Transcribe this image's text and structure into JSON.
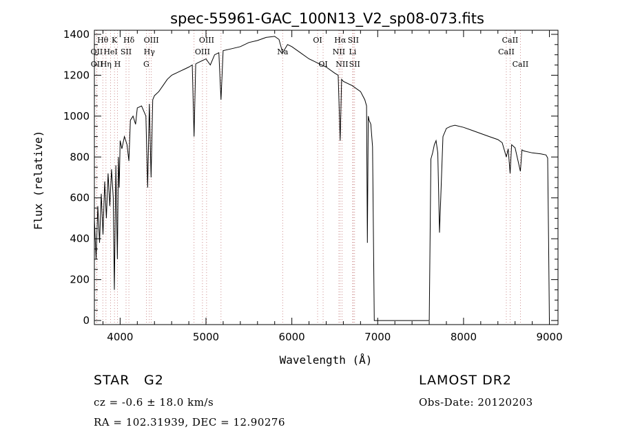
{
  "chart_data": {
    "type": "line",
    "title": "spec-55961-GAC_100N13_V2_sp08-073.fits",
    "xlabel": "Wavelength (Å)",
    "ylabel": "Flux (relative)",
    "xlim": [
      3700,
      9100
    ],
    "ylim": [
      -20,
      1420
    ],
    "xticks": [
      4000,
      5000,
      6000,
      7000,
      8000,
      9000
    ],
    "yticks": [
      0,
      200,
      400,
      600,
      800,
      1000,
      1200,
      1400
    ],
    "grid": false,
    "series": [
      {
        "x": [
          3700,
          3720,
          3740,
          3760,
          3780,
          3800,
          3820,
          3840,
          3860,
          3880,
          3900,
          3920,
          3933,
          3950,
          3968,
          3980,
          3990,
          4000,
          4020,
          4050,
          4080,
          4102,
          4120,
          4150,
          4180,
          4200,
          4250,
          4300,
          4320,
          4340,
          4360,
          4380,
          4400,
          4450,
          4500,
          4550,
          4600,
          4650,
          4700,
          4750,
          4800,
          4840,
          4861,
          4880,
          4900,
          4950,
          5000,
          5050,
          5100,
          5150,
          5175,
          5200,
          5300,
          5400,
          5500,
          5600,
          5700,
          5800,
          5850,
          5893,
          5950,
          6000,
          6100,
          6200,
          6300,
          6400,
          6500,
          6540,
          6563,
          6580,
          6600,
          6700,
          6800,
          6850,
          6870,
          6880,
          6890,
          6900,
          6920,
          6940,
          6960,
          7000,
          7200,
          7400,
          7550,
          7580,
          7600,
          7620,
          7640,
          7660,
          7680,
          7700,
          7720,
          7760,
          7800,
          7850,
          7900,
          8000,
          8100,
          8200,
          8300,
          8400,
          8450,
          8498,
          8520,
          8542,
          8560,
          8600,
          8662,
          8680,
          8700,
          8800,
          8900,
          8960,
          8980,
          8990,
          9000
        ],
        "y": [
          500,
          300,
          560,
          380,
          620,
          420,
          680,
          500,
          720,
          560,
          740,
          600,
          150,
          760,
          300,
          800,
          650,
          880,
          840,
          900,
          860,
          780,
          980,
          1000,
          960,
          1040,
          1050,
          1000,
          650,
          1060,
          700,
          1080,
          1100,
          1120,
          1150,
          1180,
          1200,
          1210,
          1220,
          1230,
          1240,
          1250,
          900,
          1255,
          1260,
          1270,
          1280,
          1250,
          1300,
          1310,
          1080,
          1320,
          1330,
          1340,
          1360,
          1370,
          1385,
          1390,
          1375,
          1310,
          1350,
          1340,
          1310,
          1280,
          1260,
          1240,
          1210,
          1200,
          880,
          1180,
          1170,
          1150,
          1120,
          1080,
          1050,
          380,
          1000,
          980,
          960,
          850,
          0,
          0,
          0,
          0,
          0,
          0,
          0,
          790,
          820,
          860,
          880,
          820,
          430,
          900,
          940,
          950,
          955,
          945,
          930,
          915,
          900,
          885,
          870,
          800,
          840,
          720,
          860,
          845,
          730,
          835,
          830,
          820,
          815,
          810,
          795,
          400,
          0
        ]
      }
    ],
    "annotations": [
      {
        "label": "Hθ",
        "x": 3798,
        "row": 1
      },
      {
        "label": "K",
        "x": 3934,
        "row": 1
      },
      {
        "label": "Hδ",
        "x": 4102,
        "row": 1
      },
      {
        "label": "OIII",
        "x": 4363,
        "row": 1
      },
      {
        "label": "OIII",
        "x": 5007,
        "row": 1
      },
      {
        "label": "OI",
        "x": 6300,
        "row": 1
      },
      {
        "label": "Hα",
        "x": 6563,
        "row": 1
      },
      {
        "label": "SII",
        "x": 6716,
        "row": 1
      },
      {
        "label": "CaII",
        "x": 8542,
        "row": 1
      },
      {
        "label": "OII",
        "x": 3727,
        "row": 2
      },
      {
        "label": "HeI",
        "x": 3889,
        "row": 2
      },
      {
        "label": "SII",
        "x": 4069,
        "row": 2
      },
      {
        "label": "Hγ",
        "x": 4340,
        "row": 2
      },
      {
        "label": "OIII",
        "x": 4959,
        "row": 2
      },
      {
        "label": "Na",
        "x": 5893,
        "row": 2
      },
      {
        "label": "NII",
        "x": 6548,
        "row": 2
      },
      {
        "label": "Li",
        "x": 6708,
        "row": 2
      },
      {
        "label": "CaII",
        "x": 8498,
        "row": 2
      },
      {
        "label": "OII",
        "x": 3729,
        "row": 3
      },
      {
        "label": "Hη",
        "x": 3835,
        "row": 3
      },
      {
        "label": "H",
        "x": 3969,
        "row": 3
      },
      {
        "label": "G",
        "x": 4305,
        "row": 3
      },
      {
        "label": "OI",
        "x": 6364,
        "row": 3
      },
      {
        "label": "NII",
        "x": 6584,
        "row": 3
      },
      {
        "label": "SII",
        "x": 6731,
        "row": 3
      },
      {
        "label": "CaII",
        "x": 8662,
        "row": 3
      }
    ],
    "line_marks": [
      3727,
      3729,
      3798,
      3835,
      3889,
      3934,
      3969,
      4069,
      4102,
      4305,
      4340,
      4363,
      4861,
      4959,
      5007,
      5175,
      5893,
      6300,
      6364,
      6548,
      6563,
      6584,
      6708,
      6716,
      6731,
      8498,
      8542,
      8662
    ]
  },
  "info": {
    "class_label": "STAR",
    "subclass": "G2",
    "survey": "LAMOST DR2",
    "velocity": "cz = -0.6 ± 18.0 km/s",
    "obs_date": "Obs-Date: 20120203",
    "coords": "RA = 102.31939, DEC =  12.90276"
  }
}
